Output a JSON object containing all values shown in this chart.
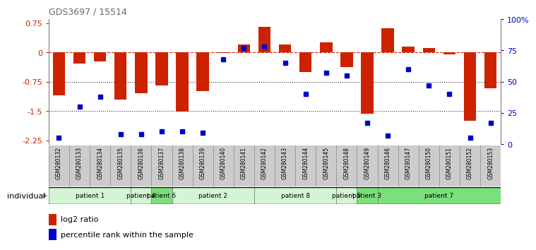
{
  "title": "GDS3697 / 15514",
  "samples": [
    "GSM280132",
    "GSM280133",
    "GSM280134",
    "GSM280135",
    "GSM280136",
    "GSM280137",
    "GSM280138",
    "GSM280139",
    "GSM280140",
    "GSM280141",
    "GSM280142",
    "GSM280143",
    "GSM280144",
    "GSM280145",
    "GSM280148",
    "GSM280149",
    "GSM280146",
    "GSM280147",
    "GSM280150",
    "GSM280151",
    "GSM280152",
    "GSM280153"
  ],
  "log2_ratio": [
    -1.1,
    -0.28,
    -0.24,
    -1.2,
    -1.05,
    -0.85,
    -1.52,
    -1.0,
    -0.02,
    0.2,
    0.65,
    0.2,
    -0.5,
    0.25,
    -0.38,
    -1.57,
    0.62,
    0.15,
    0.12,
    -0.05,
    -1.75,
    -0.92
  ],
  "percentile_rank": [
    5,
    30,
    38,
    8,
    8,
    10,
    10,
    9,
    68,
    77,
    78,
    65,
    40,
    57,
    55,
    17,
    7,
    60,
    47,
    40,
    5,
    17
  ],
  "patients_display": [
    {
      "label": "patient 1",
      "start": 0,
      "end": 3,
      "color": "#d4f5d4"
    },
    {
      "label": "patient 4",
      "start": 4,
      "end": 4,
      "color": "#d4f5d4"
    },
    {
      "label": "patient 6",
      "start": 5,
      "end": 5,
      "color": "#7be07b"
    },
    {
      "label": "patient 2",
      "start": 6,
      "end": 9,
      "color": "#d4f5d4"
    },
    {
      "label": "patient 8",
      "start": 10,
      "end": 13,
      "color": "#d4f5d4"
    },
    {
      "label": "patient 5",
      "start": 14,
      "end": 14,
      "color": "#d4f5d4"
    },
    {
      "label": "patient 3",
      "start": 15,
      "end": 15,
      "color": "#7be07b"
    },
    {
      "label": "patient 7",
      "start": 16,
      "end": 21,
      "color": "#7be07b"
    }
  ],
  "bar_color": "#cc2200",
  "dot_color": "#0000cc",
  "ylim_left": [
    -2.35,
    0.85
  ],
  "ylim_right": [
    0,
    100
  ],
  "yticks_left": [
    0.75,
    0,
    -0.75,
    -1.5,
    -2.25
  ],
  "yticks_right": [
    100,
    75,
    50,
    25,
    0
  ],
  "ytick_right_labels": [
    "100%",
    "75",
    "50",
    "25",
    "0"
  ],
  "hlines": [
    0,
    -0.75,
    -1.5
  ],
  "hline_styles": [
    "--",
    ":",
    ":"
  ],
  "hline_colors": [
    "#cc2200",
    "#333333",
    "#333333"
  ],
  "background_color": "#ffffff",
  "sample_bg_color": "#cccccc",
  "legend_log2": "log2 ratio",
  "legend_pct": "percentile rank within the sample"
}
